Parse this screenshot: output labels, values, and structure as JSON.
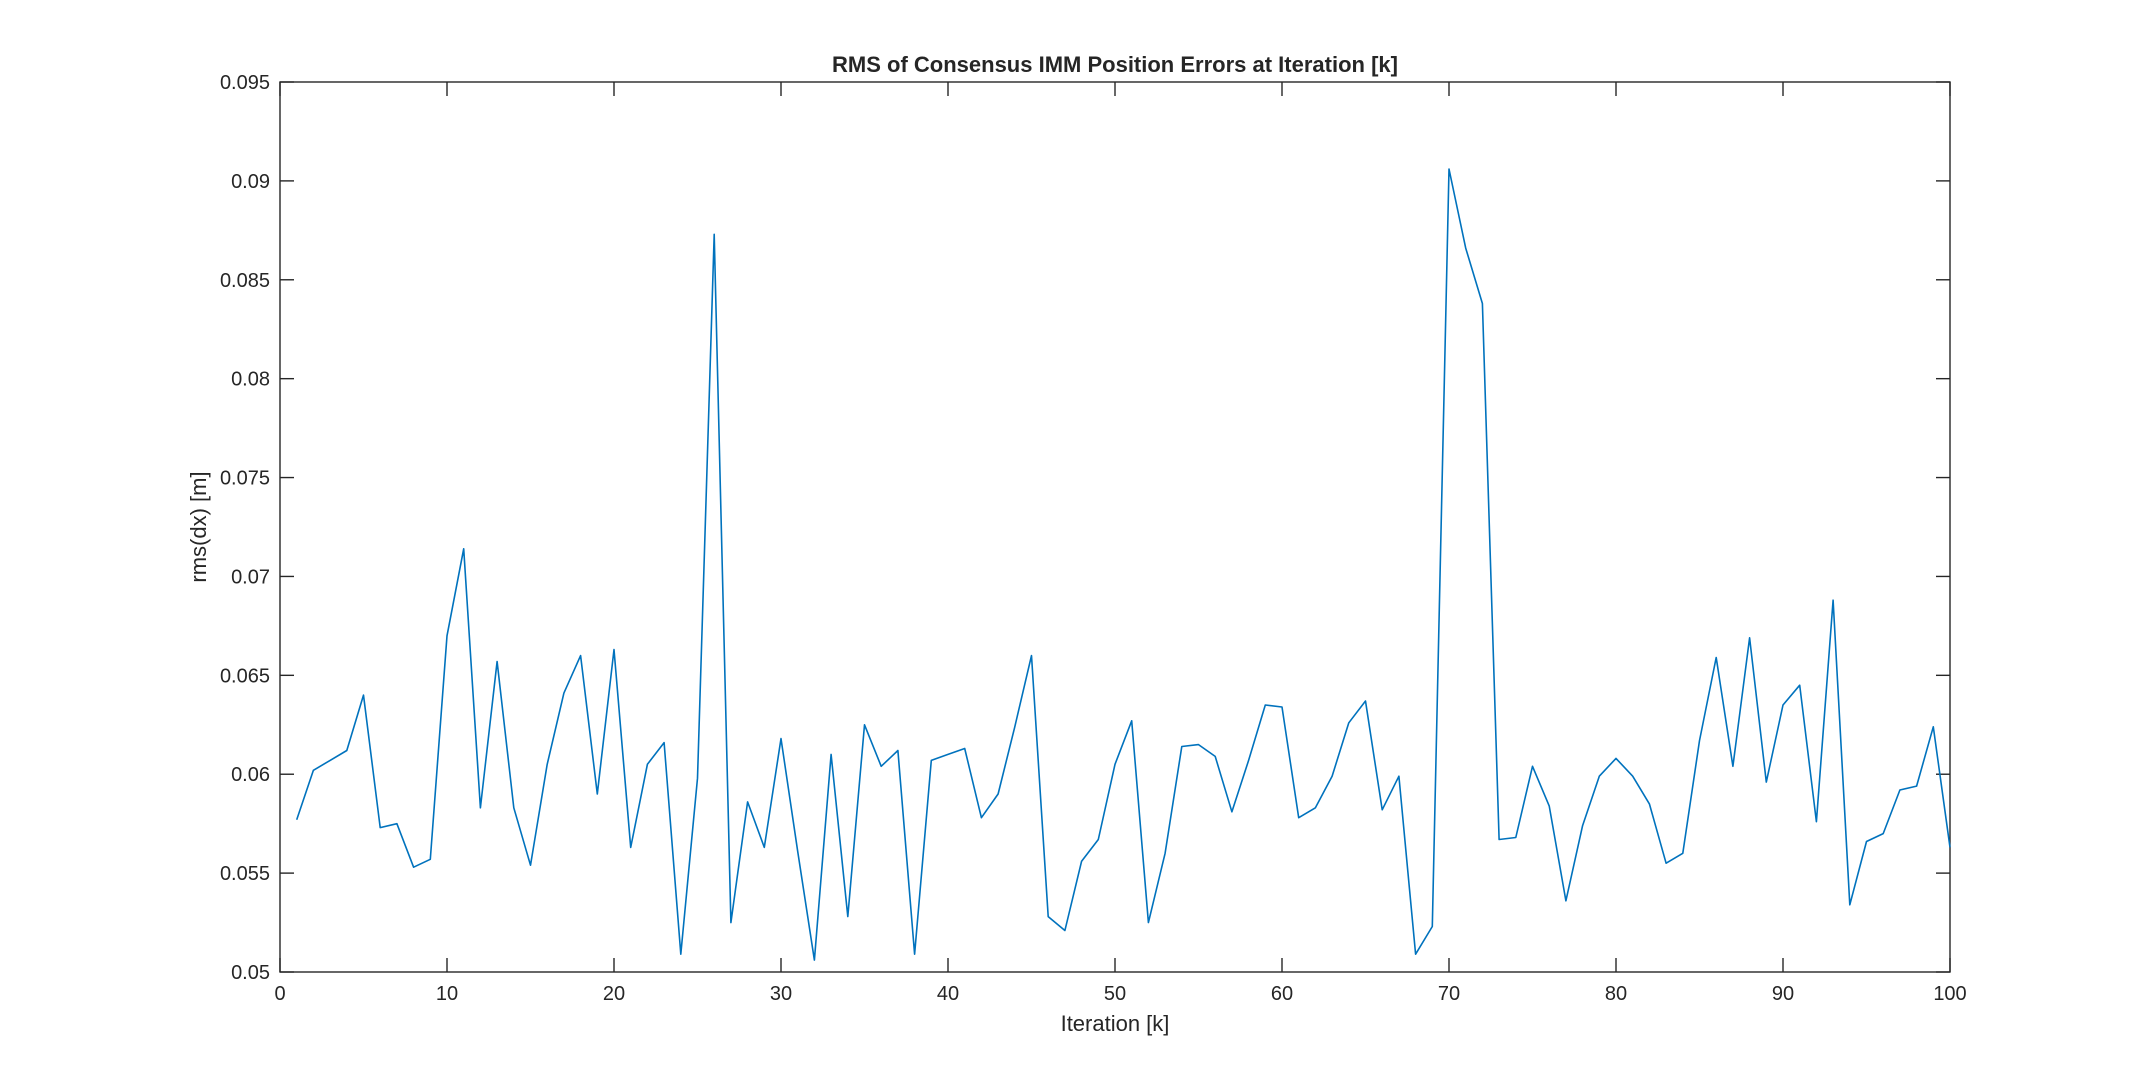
{
  "chart_data": {
    "type": "line",
    "title": "RMS of Consensus IMM Position Errors at Iteration [k]",
    "xlabel": "Iteration [k]",
    "ylabel": "rms(dx) [m]",
    "xlim": [
      0,
      100
    ],
    "ylim": [
      0.05,
      0.095
    ],
    "xticks": [
      0,
      10,
      20,
      30,
      40,
      50,
      60,
      70,
      80,
      90,
      100
    ],
    "xtick_labels": [
      "0",
      "10",
      "20",
      "30",
      "40",
      "50",
      "60",
      "70",
      "80",
      "90",
      "100"
    ],
    "yticks": [
      0.05,
      0.055,
      0.06,
      0.065,
      0.07,
      0.075,
      0.08,
      0.085,
      0.09,
      0.095
    ],
    "ytick_labels": [
      "0.05",
      "0.055",
      "0.06",
      "0.065",
      "0.07",
      "0.075",
      "0.08",
      "0.085",
      "0.09",
      "0.095"
    ],
    "grid": false,
    "box": true,
    "color": "#0072BD",
    "x": [
      1,
      2,
      3,
      4,
      5,
      6,
      7,
      8,
      9,
      10,
      11,
      12,
      13,
      14,
      15,
      16,
      17,
      18,
      19,
      20,
      21,
      22,
      23,
      24,
      25,
      26,
      27,
      28,
      29,
      30,
      31,
      32,
      33,
      34,
      35,
      36,
      37,
      38,
      39,
      40,
      41,
      42,
      43,
      44,
      45,
      46,
      47,
      48,
      49,
      50,
      51,
      52,
      53,
      54,
      55,
      56,
      57,
      58,
      59,
      60,
      61,
      62,
      63,
      64,
      65,
      66,
      67,
      68,
      69,
      70,
      71,
      72,
      73,
      74,
      75,
      76,
      77,
      78,
      79,
      80,
      81,
      82,
      83,
      84,
      85,
      86,
      87,
      88,
      89,
      90,
      91,
      92,
      93,
      94,
      95,
      96,
      97,
      98,
      99,
      100
    ],
    "values": [
      0.0577,
      0.0602,
      0.0607,
      0.0612,
      0.064,
      0.0573,
      0.0575,
      0.0553,
      0.0557,
      0.067,
      0.0714,
      0.0583,
      0.0657,
      0.0583,
      0.0554,
      0.0605,
      0.0641,
      0.066,
      0.059,
      0.0663,
      0.0563,
      0.0605,
      0.0616,
      0.0509,
      0.0598,
      0.0873,
      0.0525,
      0.0586,
      0.0563,
      0.0618,
      0.0561,
      0.0506,
      0.061,
      0.0528,
      0.0625,
      0.0604,
      0.0612,
      0.0509,
      0.0607,
      0.061,
      0.0613,
      0.0578,
      0.059,
      0.0624,
      0.066,
      0.0528,
      0.0521,
      0.0556,
      0.0567,
      0.0605,
      0.0627,
      0.0525,
      0.056,
      0.0614,
      0.0615,
      0.0609,
      0.0581,
      0.0607,
      0.0635,
      0.0634,
      0.0578,
      0.0583,
      0.0599,
      0.0626,
      0.0637,
      0.0582,
      0.0599,
      0.0509,
      0.0523,
      0.0906,
      0.0866,
      0.0838,
      0.0567,
      0.0568,
      0.0604,
      0.0584,
      0.0536,
      0.0574,
      0.0599,
      0.0608,
      0.0599,
      0.0585,
      0.0555,
      0.056,
      0.0617,
      0.0659,
      0.0604,
      0.0669,
      0.0596,
      0.0635,
      0.0645,
      0.0576,
      0.0688,
      0.0534,
      0.0566,
      0.057,
      0.0592,
      0.0594,
      0.0624,
      0.0563
    ]
  }
}
